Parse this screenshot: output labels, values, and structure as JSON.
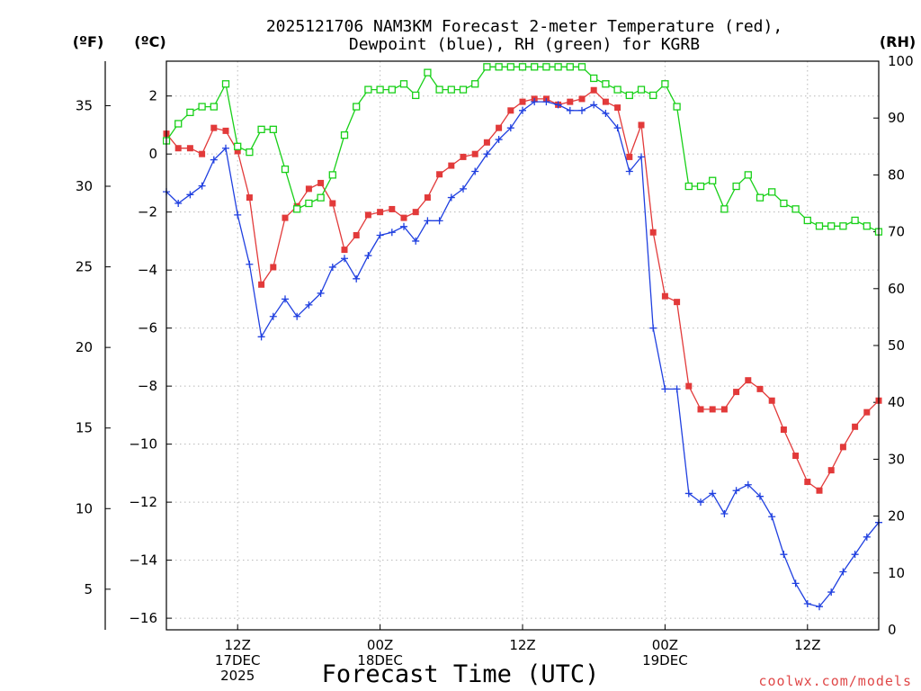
{
  "chart_data": {
    "type": "line",
    "title_lines": [
      "2025121706 NAM3KM Forecast 2-meter Temperature (red),",
      "Dewpoint (blue), RH (green) for KGRB"
    ],
    "units": {
      "fahrenheit": "(ºF)",
      "celsius": "(ºC)",
      "rh": "(RH)"
    },
    "xlabel": "Forecast Time (UTC)",
    "credit": "coolwx.com/models",
    "x_unit": "hours since 2025-12-17 06Z",
    "xlim": [
      0,
      60
    ],
    "x_ticks": [
      {
        "x": 6,
        "lines": [
          "12Z",
          "17DEC",
          "2025"
        ]
      },
      {
        "x": 18,
        "lines": [
          "00Z",
          "18DEC"
        ]
      },
      {
        "x": 30,
        "lines": [
          "12Z"
        ]
      },
      {
        "x": 42,
        "lines": [
          "00Z",
          "19DEC"
        ]
      },
      {
        "x": 54,
        "lines": [
          "12Z"
        ]
      }
    ],
    "y_celsius": {
      "ylim": [
        -16.4,
        3.2
      ],
      "ticks": [
        2,
        0,
        -2,
        -4,
        -6,
        -8,
        -10,
        -12,
        -14,
        -16
      ]
    },
    "y_fahrenheit": {
      "ticks": [
        35,
        30,
        25,
        20,
        15,
        10,
        5
      ]
    },
    "y_rh": {
      "ylim": [
        0,
        100
      ],
      "ticks": [
        100,
        90,
        80,
        70,
        60,
        50,
        40,
        30,
        20,
        10,
        0
      ]
    },
    "series": [
      {
        "name": "2-meter Temperature",
        "axis": "celsius",
        "color": "#e23a3a",
        "marker": "filled-square",
        "x": [
          0,
          1,
          2,
          3,
          4,
          5,
          6,
          7,
          8,
          9,
          10,
          11,
          12,
          13,
          14,
          15,
          16,
          17,
          18,
          19,
          20,
          21,
          22,
          23,
          24,
          25,
          26,
          27,
          28,
          29,
          30,
          31,
          32,
          33,
          34,
          35,
          36,
          37,
          38,
          39,
          40,
          41,
          42,
          43,
          44,
          45,
          46,
          47,
          48,
          49,
          50,
          51,
          52,
          53,
          54,
          55,
          56,
          57,
          58,
          59,
          60
        ],
        "values": [
          0.7,
          0.2,
          0.2,
          0,
          0.9,
          0.8,
          0.1,
          -1.5,
          -4.5,
          -3.9,
          -2.2,
          -1.8,
          -1.2,
          -1.0,
          -1.7,
          -3.3,
          -2.8,
          -2.1,
          -2.0,
          -1.9,
          -2.2,
          -2.0,
          -1.5,
          -0.7,
          -0.4,
          -0.1,
          0,
          0.4,
          0.9,
          1.5,
          1.8,
          1.9,
          1.9,
          1.7,
          1.8,
          1.9,
          2.2,
          1.8,
          1.6,
          -0.1,
          1.0,
          -2.7,
          -4.9,
          -5.1,
          -8.0,
          -8.8,
          -8.8,
          -8.8,
          -8.2,
          -7.8,
          -8.1,
          -8.5,
          -9.5,
          -10.4,
          -11.3,
          -11.6,
          -10.9,
          -10.1,
          -9.4,
          -8.9,
          -8.5
        ]
      },
      {
        "name": "Dewpoint",
        "axis": "celsius",
        "color": "#2040e0",
        "marker": "plus",
        "x": [
          0,
          1,
          2,
          3,
          4,
          5,
          6,
          7,
          8,
          9,
          10,
          11,
          12,
          13,
          14,
          15,
          16,
          17,
          18,
          19,
          20,
          21,
          22,
          23,
          24,
          25,
          26,
          27,
          28,
          29,
          30,
          31,
          32,
          33,
          34,
          35,
          36,
          37,
          38,
          39,
          40,
          41,
          42,
          43,
          44,
          45,
          46,
          47,
          48,
          49,
          50,
          51,
          52,
          53,
          54,
          55,
          56,
          57,
          58,
          59,
          60
        ],
        "values": [
          -1.3,
          -1.7,
          -1.4,
          -1.1,
          -0.2,
          0.2,
          -2.1,
          -3.8,
          -6.3,
          -5.6,
          -5.0,
          -5.6,
          -5.2,
          -4.8,
          -3.9,
          -3.6,
          -4.3,
          -3.5,
          -2.8,
          -2.7,
          -2.5,
          -3.0,
          -2.3,
          -2.3,
          -1.5,
          -1.2,
          -0.6,
          0,
          0.5,
          0.9,
          1.5,
          1.8,
          1.8,
          1.7,
          1.5,
          1.5,
          1.7,
          1.4,
          0.9,
          -0.6,
          -0.1,
          -6.0,
          -8.1,
          -8.1,
          -11.7,
          -12.0,
          -11.7,
          -12.4,
          -11.6,
          -11.4,
          -11.8,
          -12.5,
          -13.8,
          -14.8,
          -15.5,
          -15.6,
          -15.1,
          -14.4,
          -13.8,
          -13.2,
          -12.7
        ]
      },
      {
        "name": "RH",
        "axis": "rh",
        "color": "#18d018",
        "marker": "open-square",
        "x": [
          0,
          1,
          2,
          3,
          4,
          5,
          6,
          7,
          8,
          9,
          10,
          11,
          12,
          13,
          14,
          15,
          16,
          17,
          18,
          19,
          20,
          21,
          22,
          23,
          24,
          25,
          26,
          27,
          28,
          29,
          30,
          31,
          32,
          33,
          34,
          35,
          36,
          37,
          38,
          39,
          40,
          41,
          42,
          43,
          44,
          45,
          46,
          47,
          48,
          49,
          50,
          51,
          52,
          53,
          54,
          55,
          56,
          57,
          58,
          59,
          60
        ],
        "values": [
          86,
          89,
          91,
          92,
          92,
          96,
          85,
          84,
          88,
          88,
          81,
          74,
          75,
          76,
          80,
          87,
          92,
          95,
          95,
          95,
          96,
          94,
          98,
          95,
          95,
          95,
          96,
          99,
          99,
          99,
          99,
          99,
          99,
          99,
          99,
          99,
          97,
          96,
          95,
          94,
          95,
          94,
          96,
          92,
          78,
          78,
          79,
          74,
          78,
          80,
          76,
          77,
          75,
          74,
          72,
          71,
          71,
          71,
          72,
          71,
          70
        ]
      }
    ]
  }
}
